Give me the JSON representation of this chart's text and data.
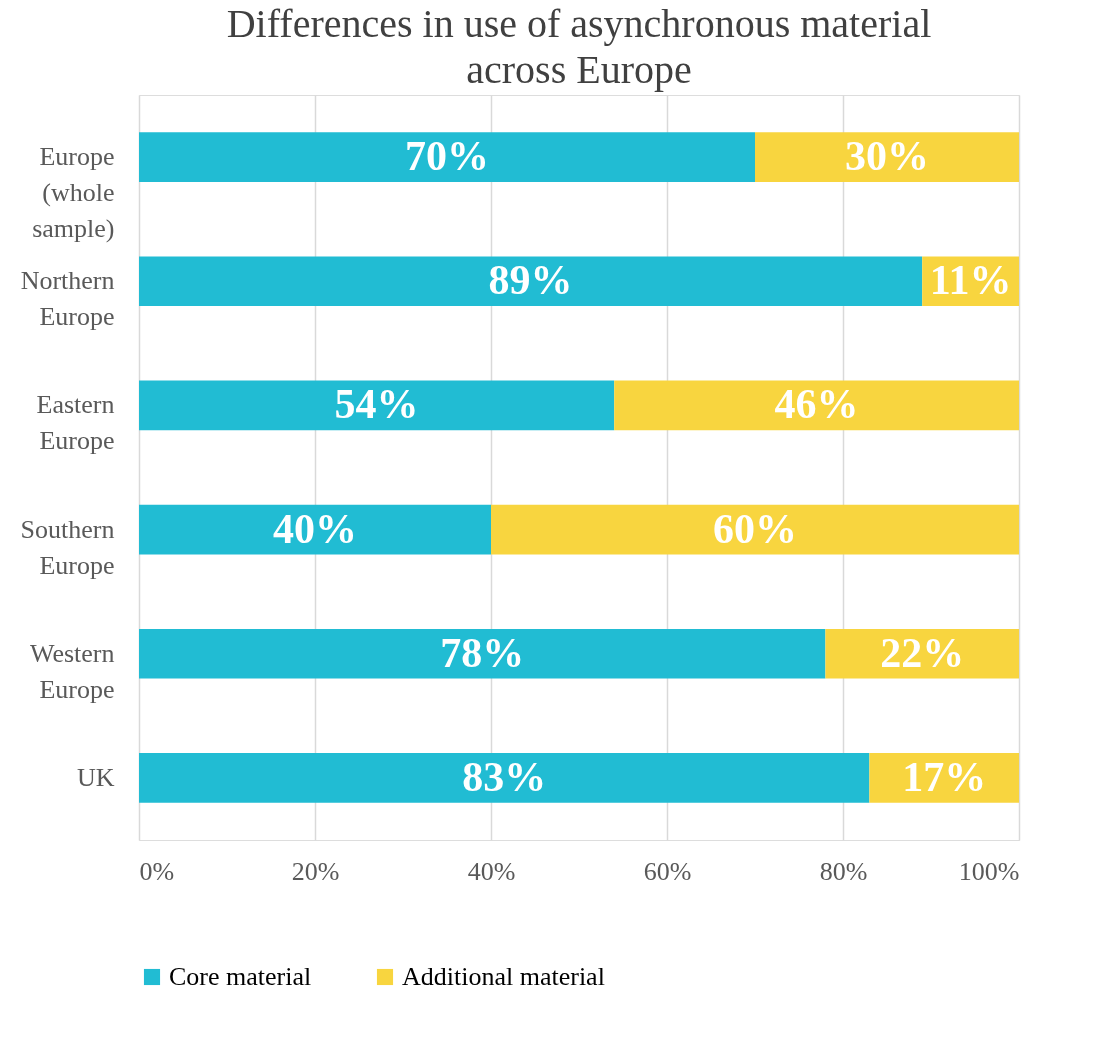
{
  "chart_data": {
    "type": "bar",
    "orientation": "horizontal",
    "stacked": true,
    "title": "Differences in use of asynchronous material across Europe",
    "categories": [
      "Europe (whole sample)",
      "Northern Europe",
      "Eastern Europe",
      "Southern Europe",
      "Western Europe",
      "UK"
    ],
    "series": [
      {
        "name": "Core material",
        "color": "#21bcd3",
        "values": [
          70,
          89,
          54,
          40,
          78,
          83
        ],
        "value_labels": [
          "70%",
          "89%",
          "54%",
          "40%",
          "78%",
          "83%"
        ]
      },
      {
        "name": "Additional material",
        "color": "#f8d53f",
        "values": [
          30,
          11,
          46,
          60,
          22,
          17
        ],
        "value_labels": [
          "30%",
          "11%",
          "46%",
          "60%",
          "22%",
          "17%"
        ]
      }
    ],
    "xlim": [
      0,
      100
    ],
    "xticks": [
      {
        "value": 0,
        "label": "0%"
      },
      {
        "value": 20,
        "label": "20%"
      },
      {
        "value": 40,
        "label": "40%"
      },
      {
        "value": 60,
        "label": "60%"
      },
      {
        "value": 80,
        "label": "80%"
      },
      {
        "value": 100,
        "label": "100%"
      }
    ],
    "grid": "x",
    "legend": "bottom"
  }
}
